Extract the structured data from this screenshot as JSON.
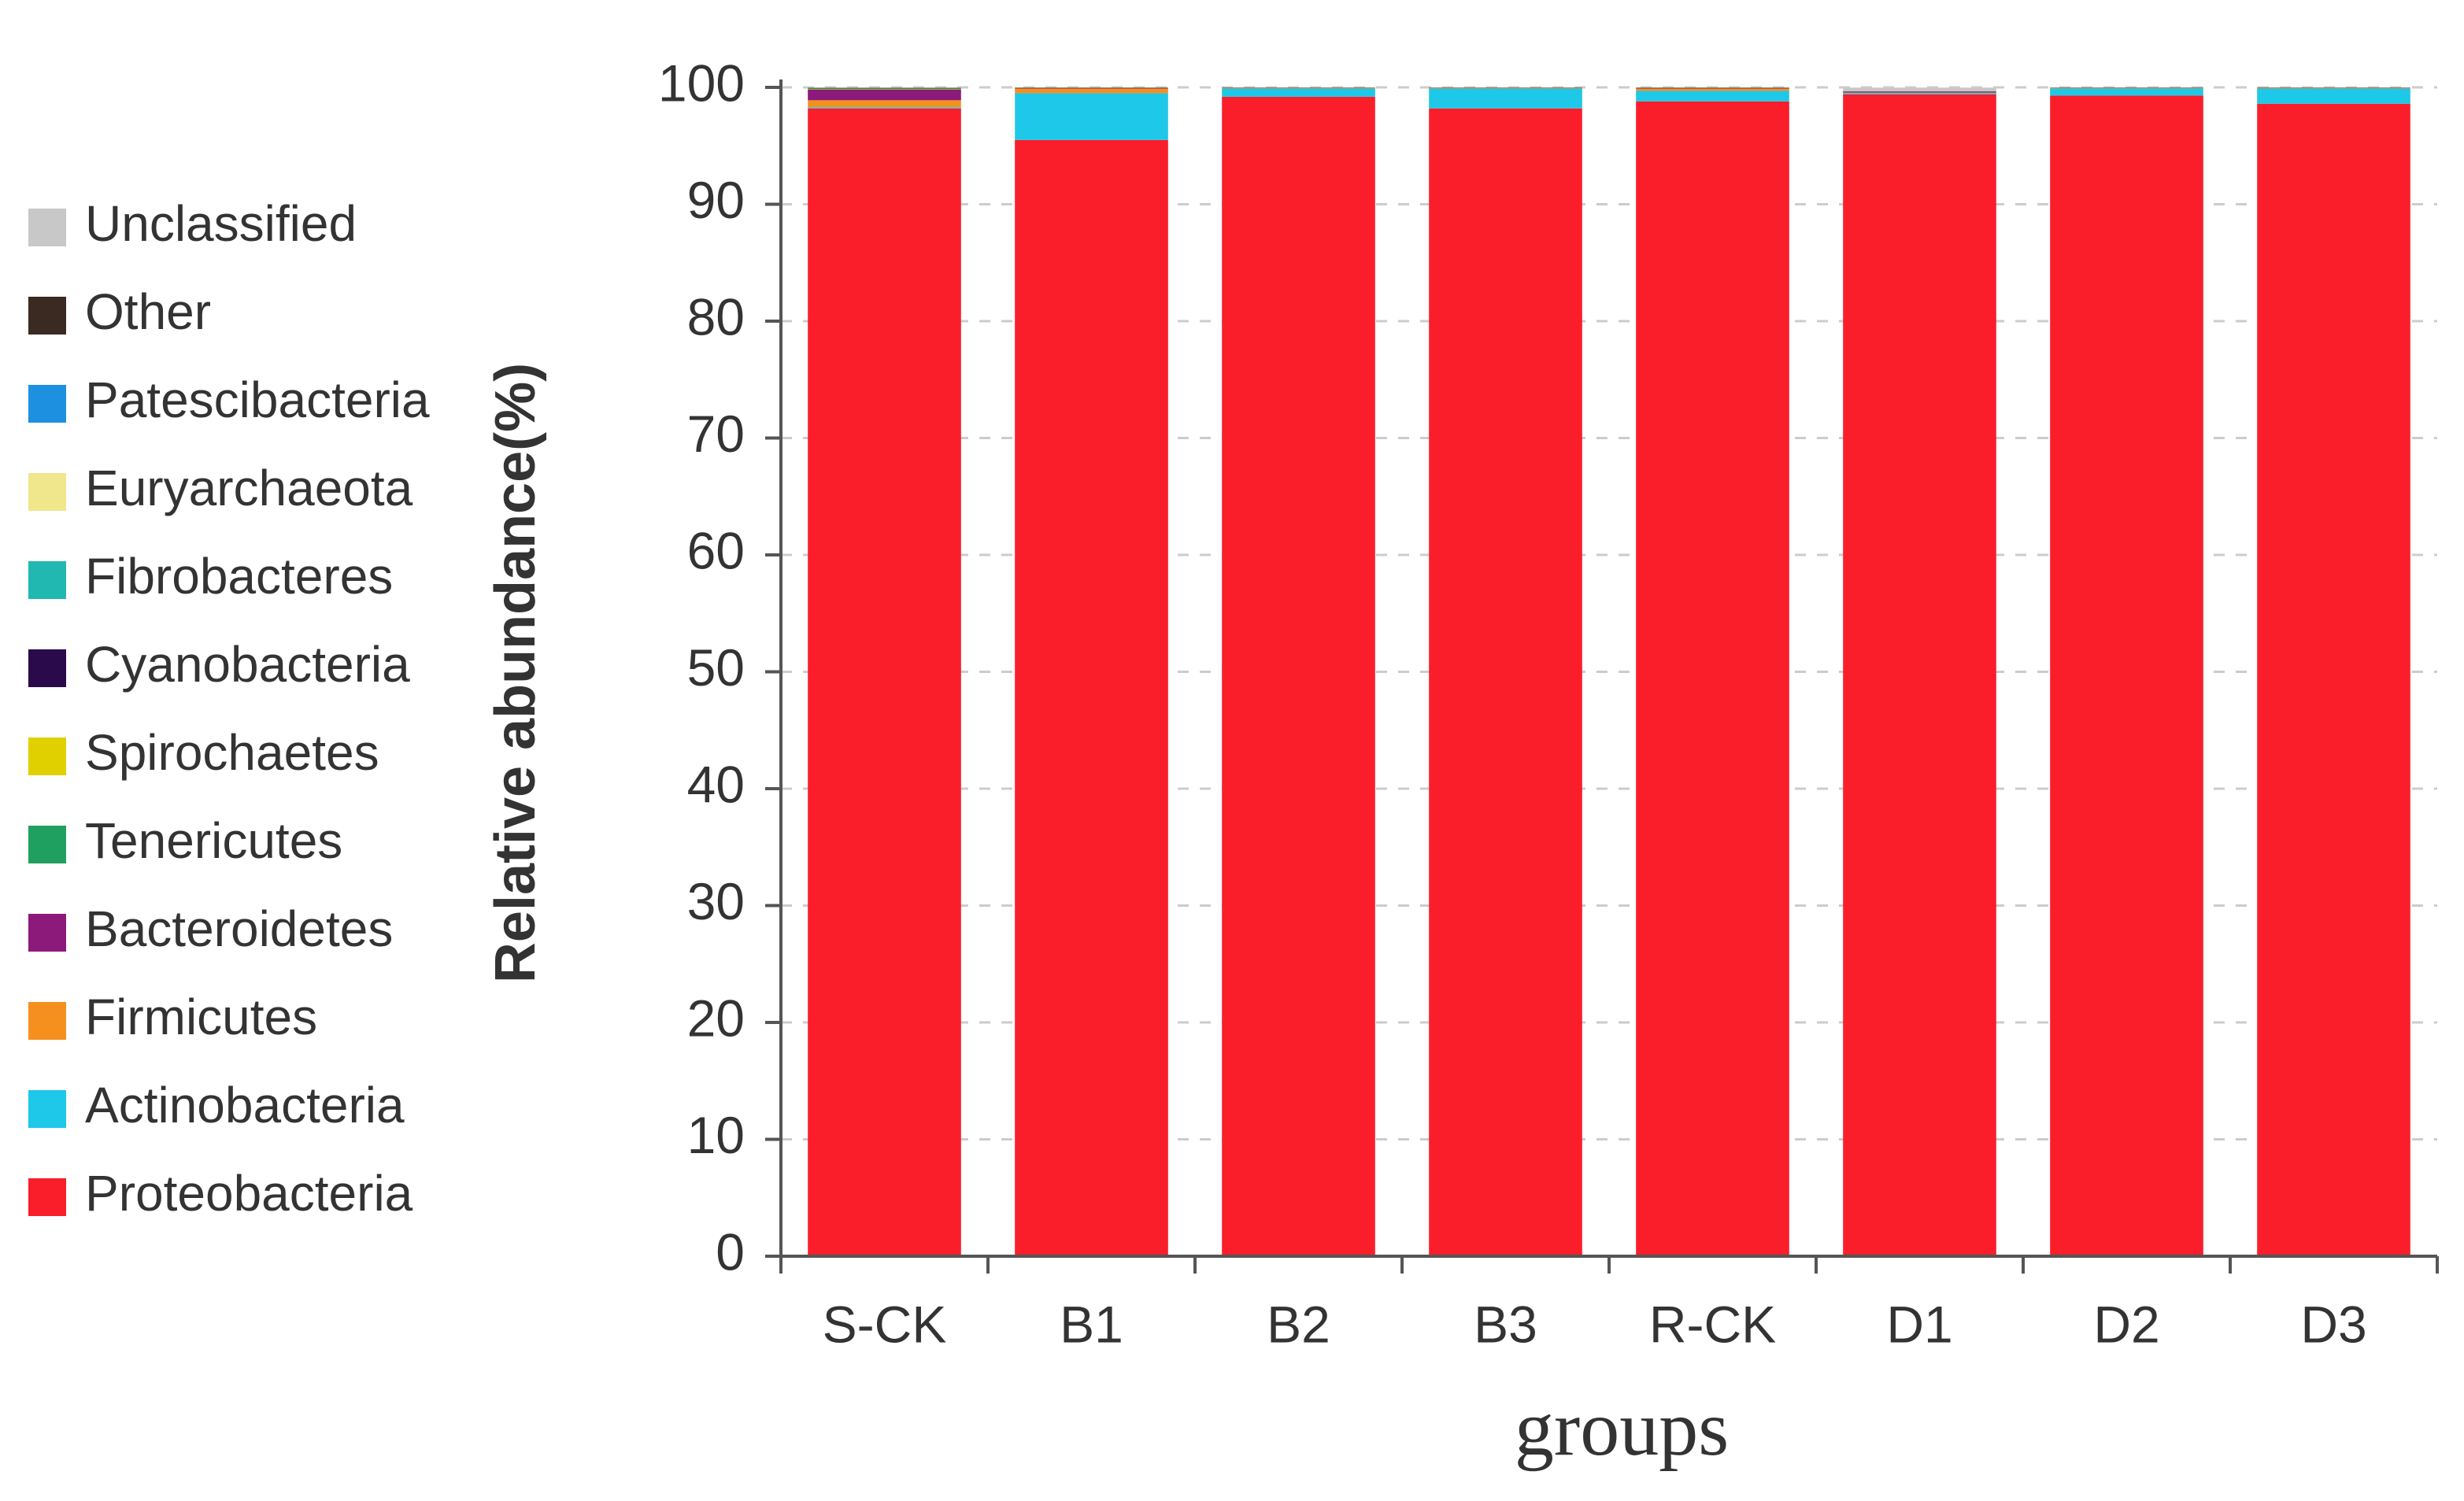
{
  "chart_data": {
    "type": "stacked_bar",
    "xlabel": "groups",
    "ylabel": "Relative abundance(%)",
    "categories": [
      "S-CK",
      "B1",
      "B2",
      "B3",
      "R-CK",
      "D1",
      "D2",
      "D3"
    ],
    "series": [
      {
        "name": "Proteobacteria",
        "color": "#fa1e2b",
        "values": [
          98.2,
          95.5,
          99.2,
          98.2,
          98.8,
          99.4,
          99.3,
          98.6
        ]
      },
      {
        "name": "Actinobacteria",
        "color": "#1ec8e8",
        "values": [
          0.1,
          4.0,
          0.7,
          1.7,
          0.9,
          0.1,
          0.6,
          1.3
        ]
      },
      {
        "name": "Firmicutes",
        "color": "#f5901e",
        "values": [
          0.6,
          0.4,
          0.05,
          0.05,
          0.2,
          0.05,
          0.05,
          0.05
        ]
      },
      {
        "name": "Bacteroidetes",
        "color": "#8b1a7a",
        "values": [
          0.9,
          0.05,
          0.02,
          0.02,
          0.05,
          0.1,
          0.02,
          0.02
        ]
      },
      {
        "name": "Tenericutes",
        "color": "#1fa060",
        "values": [
          0.05,
          0.01,
          0.01,
          0.01,
          0.01,
          0.01,
          0.01,
          0.01
        ]
      },
      {
        "name": "Spirochaetes",
        "color": "#e0d000",
        "values": [
          0.05,
          0.01,
          0.01,
          0.01,
          0.01,
          0.01,
          0.01,
          0.01
        ]
      },
      {
        "name": "Cyanobacteria",
        "color": "#2a0a4a",
        "values": [
          0.05,
          0.01,
          0.01,
          0.01,
          0.01,
          0.01,
          0.01,
          0.01
        ]
      },
      {
        "name": "Fibrobacteres",
        "color": "#20b8b0",
        "values": [
          0.01,
          0.01,
          0.0,
          0.0,
          0.01,
          0.0,
          0.0,
          0.0
        ]
      },
      {
        "name": "Euryarchaeota",
        "color": "#f0e68c",
        "values": [
          0.01,
          0.0,
          0.0,
          0.0,
          0.0,
          0.0,
          0.0,
          0.0
        ]
      },
      {
        "name": "Patescibacteria",
        "color": "#1e90e0",
        "values": [
          0.01,
          0.0,
          0.0,
          0.0,
          0.0,
          0.0,
          0.0,
          0.0
        ]
      },
      {
        "name": "Other",
        "color": "#3a2a22",
        "values": [
          0.01,
          0.01,
          0.0,
          0.0,
          0.01,
          0.0,
          0.0,
          0.0
        ]
      },
      {
        "name": "Unclassified",
        "color": "#c8c8c8",
        "values": [
          0.01,
          0.01,
          0.0,
          0.0,
          0.01,
          0.3,
          0.0,
          0.0
        ]
      }
    ],
    "ylim": [
      0,
      100
    ],
    "yticks": [
      0,
      10,
      20,
      30,
      40,
      50,
      60,
      70,
      80,
      90,
      100
    ],
    "grid": true
  }
}
